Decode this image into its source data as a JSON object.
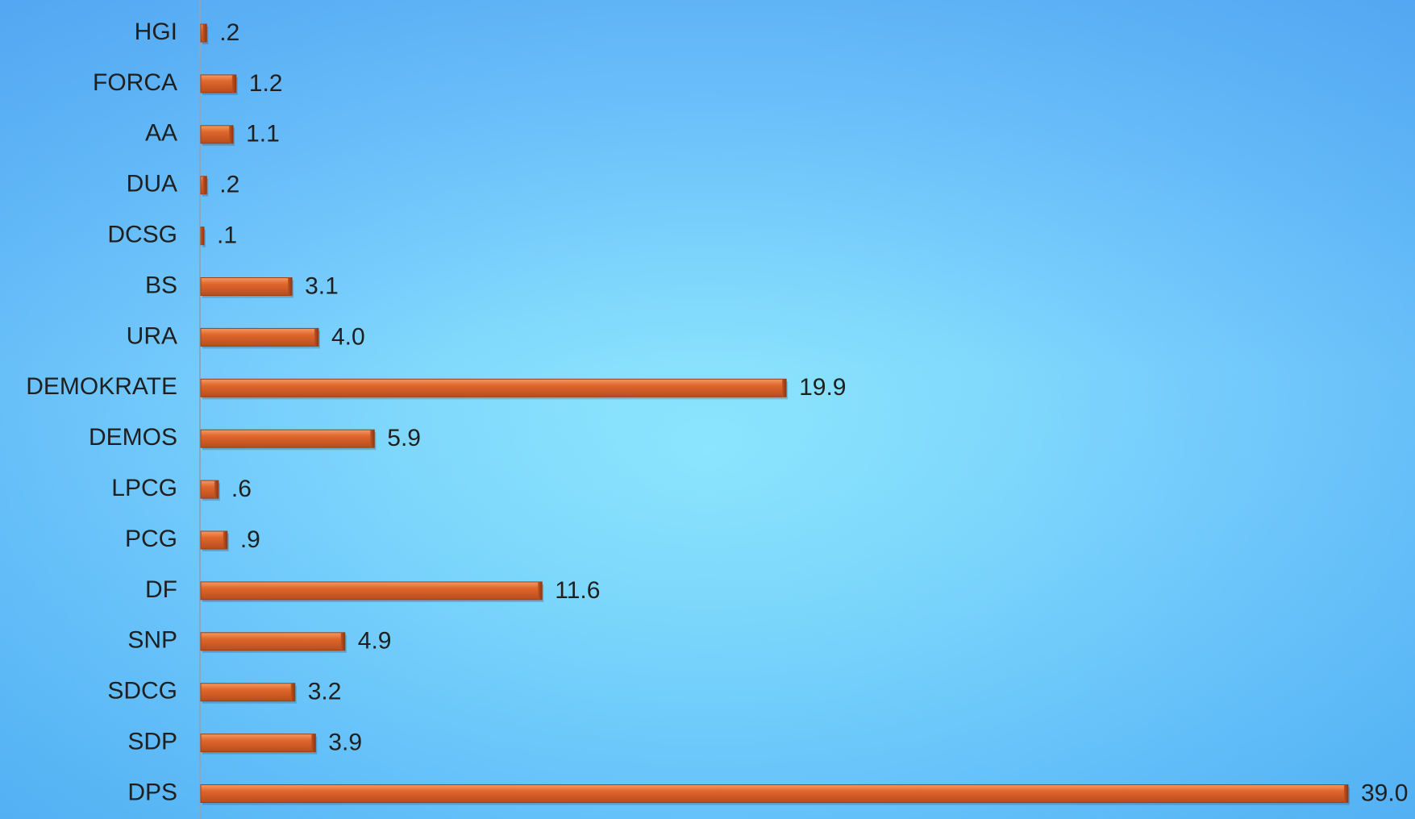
{
  "chart_data": {
    "type": "bar",
    "orientation": "horizontal",
    "categories": [
      "HGI",
      "FORCA",
      "AA",
      "DUA",
      "DCSG",
      "BS",
      "URA",
      "DEMOKRATE",
      "DEMOS",
      "LPCG",
      "PCG",
      "DF",
      "SNP",
      "SDCG",
      "SDP",
      "DPS"
    ],
    "values": [
      0.2,
      1.2,
      1.1,
      0.2,
      0.1,
      3.1,
      4.0,
      19.9,
      5.9,
      0.6,
      0.9,
      11.6,
      4.9,
      3.2,
      3.9,
      39.0
    ],
    "value_labels": [
      ".2",
      "1.2",
      "1.1",
      ".2",
      ".1",
      "3.1",
      "4.0",
      "19.9",
      "5.9",
      ".6",
      ".9",
      "11.6",
      "4.9",
      "3.2",
      "3.9",
      "39.0"
    ],
    "title": "",
    "xlabel": "",
    "ylabel": "",
    "xlim": [
      0,
      39.0
    ],
    "grid": false,
    "legend": "none",
    "colors": {
      "bar": "#d9622b",
      "bar_light": "#f08a4e",
      "bar_dark": "#a9451b",
      "axis": "#8aa7bd",
      "text": "#1f1f1f"
    }
  }
}
